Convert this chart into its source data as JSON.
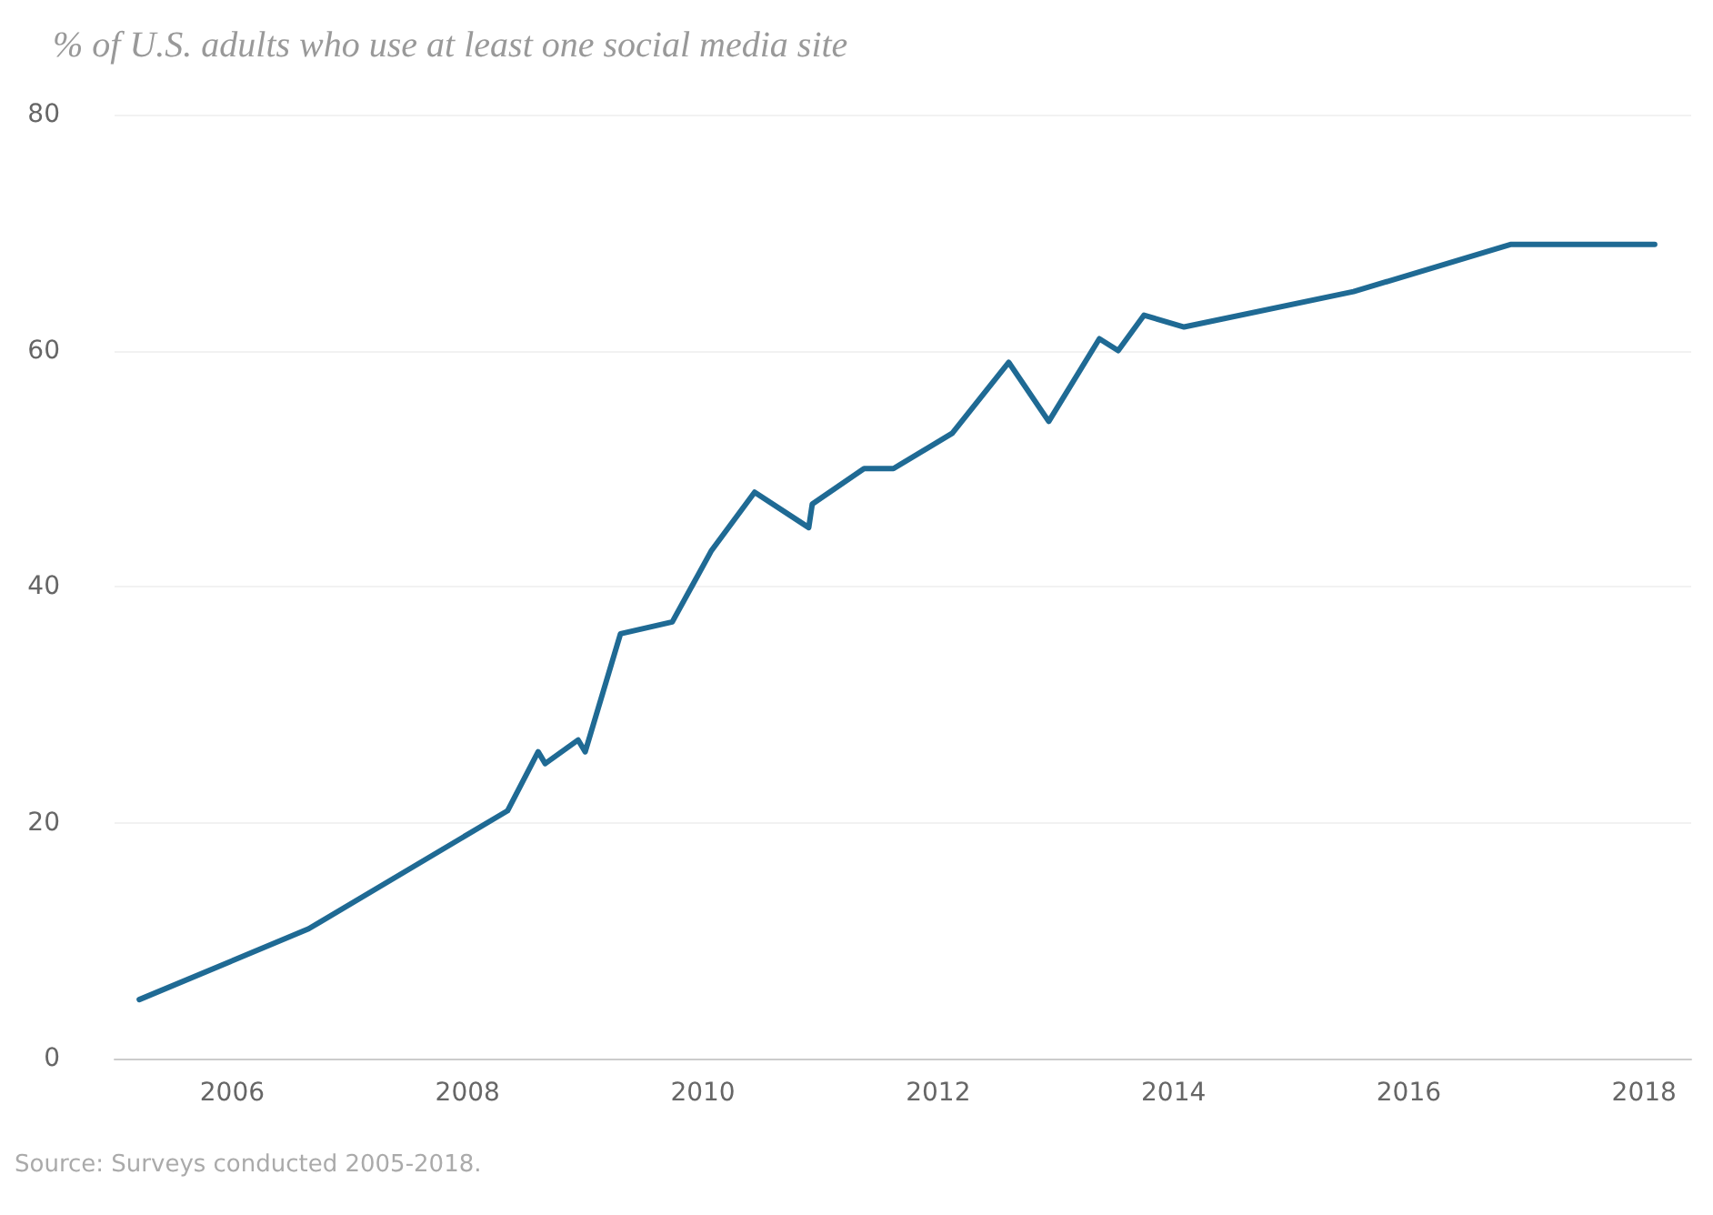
{
  "chart_data": {
    "type": "line",
    "title": "% of U.S. adults who use at least one social media site",
    "x": [
      2005.21,
      2006.65,
      2008.34,
      2008.6,
      2008.66,
      2008.94,
      2009.0,
      2009.3,
      2009.74,
      2010.07,
      2010.44,
      2010.9,
      2010.93,
      2011.37,
      2011.62,
      2012.12,
      2012.6,
      2012.94,
      2013.37,
      2013.53,
      2013.75,
      2014.09,
      2015.53,
      2016.87,
      2018.09
    ],
    "series": [
      {
        "color": "#1f6a94",
        "values": [
          5,
          11,
          21,
          26,
          25,
          27,
          26,
          36,
          37,
          43,
          48,
          45,
          47,
          50,
          50,
          53,
          59,
          54,
          61,
          60,
          63,
          62,
          65,
          69,
          69
        ]
      }
    ],
    "xlim": [
      2005,
      2018.4
    ],
    "xticks": [
      2006,
      2008,
      2010,
      2012,
      2014,
      2016,
      2018
    ],
    "ylim": [
      0,
      80
    ],
    "yticks": [
      0,
      20,
      40,
      60,
      80
    ],
    "grid": "y",
    "marker": "none",
    "line_style": "solid",
    "annotations": [
      "Source: Surveys conducted 2005-2018."
    ]
  }
}
